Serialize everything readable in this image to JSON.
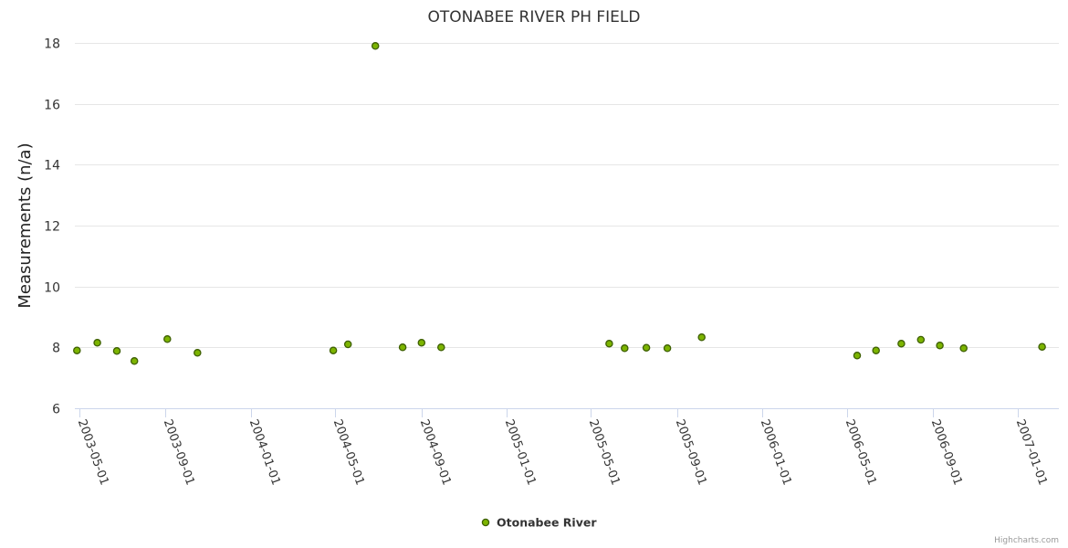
{
  "chart_data": {
    "type": "scatter",
    "title": "OTONABEE RIVER PH FIELD",
    "ylabel": "Measurements (n/a)",
    "xlabel": "",
    "ylim": [
      6,
      18
    ],
    "yticks": [
      6,
      8,
      10,
      12,
      14,
      16,
      18
    ],
    "xlim": [
      "2003-04-25",
      "2007-02-28"
    ],
    "xticks": [
      "2003-05-01",
      "2003-09-01",
      "2004-01-01",
      "2004-05-01",
      "2004-09-01",
      "2005-01-01",
      "2005-05-01",
      "2005-09-01",
      "2006-01-01",
      "2006-05-01",
      "2006-09-01",
      "2007-01-01"
    ],
    "grid": true,
    "legend_position": "bottom-center",
    "series": [
      {
        "name": "Otonabee River",
        "color": "#7cb400",
        "points": [
          {
            "x": "2003-04-28",
            "y": 7.9
          },
          {
            "x": "2003-05-27",
            "y": 8.15
          },
          {
            "x": "2003-06-24",
            "y": 7.88
          },
          {
            "x": "2003-07-19",
            "y": 7.55
          },
          {
            "x": "2003-09-04",
            "y": 8.27
          },
          {
            "x": "2003-10-17",
            "y": 7.82
          },
          {
            "x": "2004-04-28",
            "y": 7.9
          },
          {
            "x": "2004-05-19",
            "y": 8.1
          },
          {
            "x": "2004-06-27",
            "y": 17.9
          },
          {
            "x": "2004-08-05",
            "y": 8.0
          },
          {
            "x": "2004-09-01",
            "y": 8.15
          },
          {
            "x": "2004-09-29",
            "y": 8.0
          },
          {
            "x": "2005-05-27",
            "y": 8.12
          },
          {
            "x": "2005-06-18",
            "y": 7.97
          },
          {
            "x": "2005-07-19",
            "y": 7.99
          },
          {
            "x": "2005-08-18",
            "y": 7.97
          },
          {
            "x": "2005-10-06",
            "y": 8.33
          },
          {
            "x": "2006-05-16",
            "y": 7.73
          },
          {
            "x": "2006-06-12",
            "y": 7.9
          },
          {
            "x": "2006-07-18",
            "y": 8.12
          },
          {
            "x": "2006-08-15",
            "y": 8.25
          },
          {
            "x": "2006-09-11",
            "y": 8.06
          },
          {
            "x": "2006-10-15",
            "y": 7.97
          },
          {
            "x": "2007-02-04",
            "y": 8.02
          }
        ]
      }
    ]
  },
  "credits": "Highcharts.com"
}
